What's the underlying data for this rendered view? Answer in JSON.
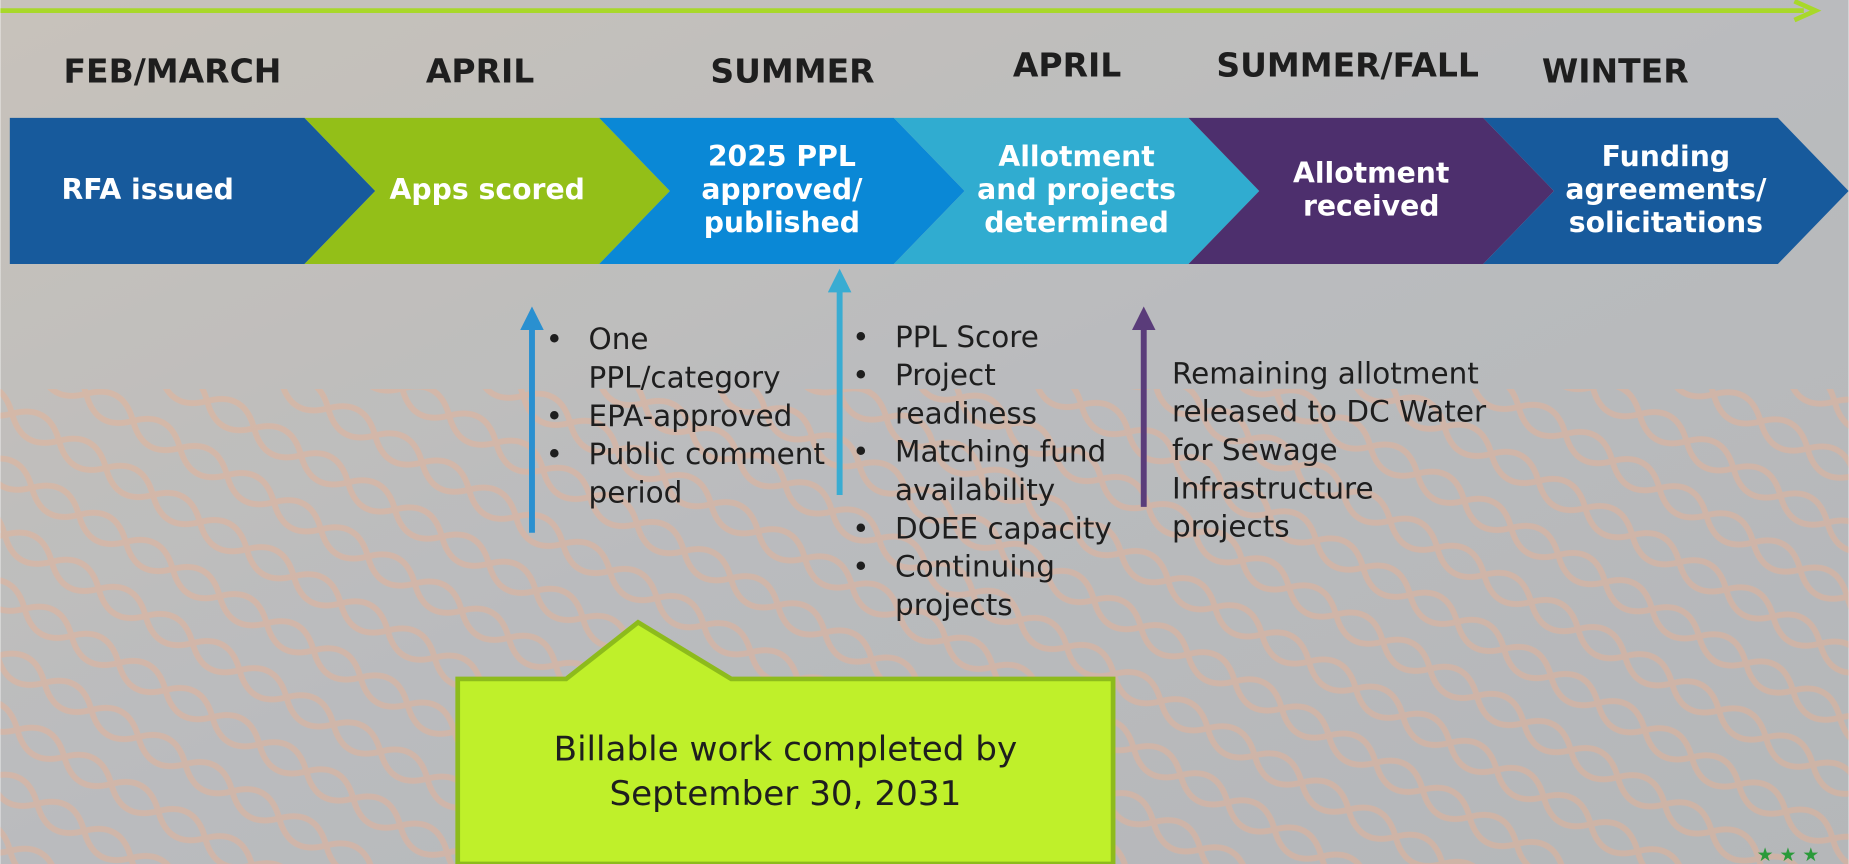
{
  "steps": [
    {
      "period": "FEB/MARCH",
      "lines": [
        "RFA issued"
      ]
    },
    {
      "period": "APRIL",
      "lines": [
        "Apps scored"
      ]
    },
    {
      "period": "SUMMER",
      "lines": [
        "2025 PPL",
        "approved/",
        "published"
      ]
    },
    {
      "period": "APRIL",
      "lines": [
        "Allotment",
        "and projects",
        "determined"
      ]
    },
    {
      "period": "SUMMER/FALL",
      "lines": [
        "Allotment",
        "received"
      ]
    },
    {
      "period": "WINTER",
      "lines": [
        "Funding",
        "agreements/",
        "solicitations"
      ]
    }
  ],
  "notes": [
    {
      "items": [
        {
          "lines": [
            "One",
            "PPL/category"
          ]
        },
        {
          "lines": [
            "EPA-approved"
          ]
        },
        {
          "lines": [
            "Public comment",
            "period"
          ]
        }
      ]
    },
    {
      "items": [
        {
          "lines": [
            "PPL Score"
          ]
        },
        {
          "lines": [
            "Project",
            "readiness"
          ]
        },
        {
          "lines": [
            "Matching fund",
            "availability"
          ]
        },
        {
          "lines": [
            "DOEE capacity"
          ]
        },
        {
          "lines": [
            "Continuing",
            "projects"
          ]
        }
      ]
    },
    {
      "paragraph": [
        "Remaining allotment",
        "released to DC Water",
        "for Sewage",
        "Infrastructure",
        "projects"
      ]
    }
  ],
  "callout": {
    "lines": [
      "Billable work completed by",
      "September 30, 2031"
    ]
  }
}
